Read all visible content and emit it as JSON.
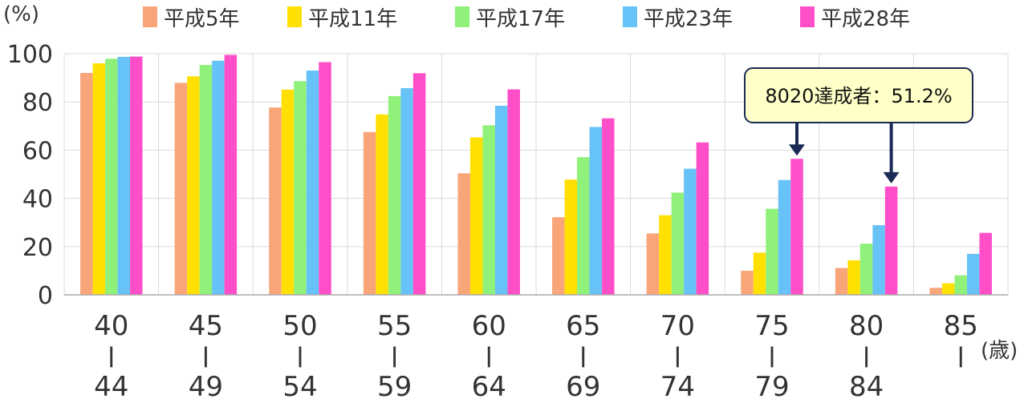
{
  "chart_data": {
    "type": "bar",
    "y_unit_label": "(%)",
    "x_unit_label": "(歳)",
    "ylim": [
      0,
      100
    ],
    "yticks": [
      0,
      20,
      40,
      60,
      80,
      100
    ],
    "grid": true,
    "legend_position": "top",
    "categories": [
      {
        "start": "40",
        "sep": "|",
        "end": "44"
      },
      {
        "start": "45",
        "sep": "|",
        "end": "49"
      },
      {
        "start": "50",
        "sep": "|",
        "end": "54"
      },
      {
        "start": "55",
        "sep": "|",
        "end": "59"
      },
      {
        "start": "60",
        "sep": "|",
        "end": "64"
      },
      {
        "start": "65",
        "sep": "|",
        "end": "69"
      },
      {
        "start": "70",
        "sep": "|",
        "end": "74"
      },
      {
        "start": "75",
        "sep": "|",
        "end": "79"
      },
      {
        "start": "80",
        "sep": "|",
        "end": "84"
      },
      {
        "start": "85",
        "sep": "|",
        "end": ""
      }
    ],
    "series": [
      {
        "name": "平成5年",
        "color": "#f9a57a",
        "values": [
          92.0,
          87.9,
          77.7,
          67.5,
          50.4,
          32.2,
          25.5,
          10.0,
          11.1,
          2.9
        ]
      },
      {
        "name": "平成11年",
        "color": "#ffe000",
        "values": [
          96.0,
          90.6,
          85.1,
          74.8,
          65.3,
          47.8,
          33.0,
          17.5,
          14.3,
          4.8
        ]
      },
      {
        "name": "平成17年",
        "color": "#8ff07a",
        "values": [
          97.9,
          95.3,
          88.6,
          82.4,
          70.3,
          57.1,
          42.4,
          35.7,
          21.2,
          8.1
        ]
      },
      {
        "name": "平成23年",
        "color": "#66c2f7",
        "values": [
          98.7,
          97.1,
          93.0,
          85.7,
          78.4,
          69.6,
          52.3,
          47.6,
          28.9,
          17.0
        ]
      },
      {
        "name": "平成28年",
        "color": "#ff4fc8",
        "values": [
          98.8,
          99.5,
          96.5,
          91.9,
          85.2,
          73.2,
          63.2,
          56.4,
          44.9,
          25.7
        ]
      }
    ],
    "annotation": {
      "text": "8020達成者：51.2%",
      "targets": [
        7,
        8
      ],
      "target_series": 4
    }
  },
  "colors": {
    "grid": "#d9d9d9",
    "axis": "#aaaaaa",
    "annotation_bg": "#ffffc8",
    "annotation_border": "#1a2a55",
    "arrow": "#1a2a55"
  }
}
